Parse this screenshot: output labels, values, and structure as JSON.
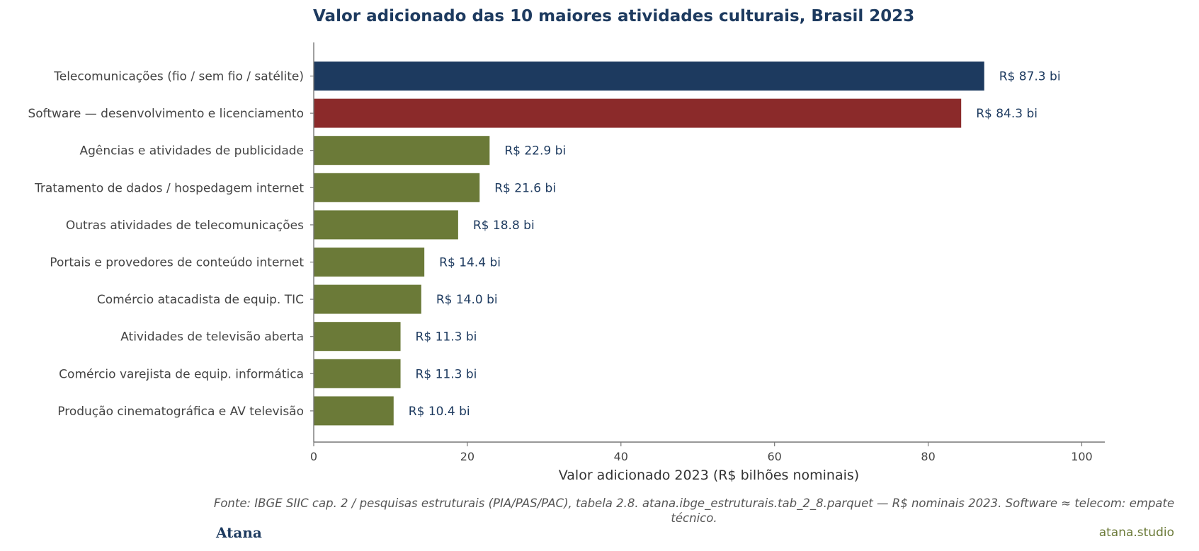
{
  "chart_data": {
    "type": "bar",
    "orientation": "horizontal",
    "title": "Valor adicionado das 10 maiores atividades culturais, Brasil 2023",
    "xlabel": "Valor adicionado 2023 (R$ bilhões nominais)",
    "ylabel": "",
    "xlim": [
      0,
      103
    ],
    "xticks": [
      0,
      20,
      40,
      60,
      80,
      100
    ],
    "grid": false,
    "legend": "none",
    "categories": [
      "Telecomunicações (fio / sem fio / satélite)",
      "Software — desenvolvimento e licenciamento",
      "Agências e atividades de publicidade",
      "Tratamento de dados / hospedagem internet",
      "Outras atividades de telecomunicações",
      "Portais e provedores de conteúdo internet",
      "Comércio atacadista de equip. TIC",
      "Atividades de televisão aberta",
      "Comércio varejista de equip. informática",
      "Produção cinematográfica e AV televisão"
    ],
    "values": [
      87.3,
      84.3,
      22.9,
      21.6,
      18.8,
      14.4,
      14.0,
      11.3,
      11.3,
      10.4
    ],
    "value_labels": [
      "R$ 87.3 bi",
      "R$ 84.3 bi",
      "R$ 22.9 bi",
      "R$ 21.6 bi",
      "R$ 18.8 bi",
      "R$ 14.4 bi",
      "R$ 14.0 bi",
      "R$ 11.3 bi",
      "R$ 11.3 bi",
      "R$ 10.4 bi"
    ],
    "colors": [
      "#1d3a5f",
      "#8b2a2a",
      "#6b7a38",
      "#6b7a38",
      "#6b7a38",
      "#6b7a38",
      "#6b7a38",
      "#6b7a38",
      "#6b7a38",
      "#6b7a38"
    ]
  },
  "source_note": "Fonte: IBGE SIIC cap. 2 / pesquisas estruturais (PIA/PAS/PAC), tabela 2.8. atana.ibge_estruturais.tab_2_8.parquet — R$ nominais 2023. Software ≈ telecom: empate técnico.",
  "brand": "Atana",
  "site": "atana.studio",
  "colors": {
    "label_text": "#1d3a5f",
    "axis": "#777777",
    "tick_text": "#444444"
  }
}
